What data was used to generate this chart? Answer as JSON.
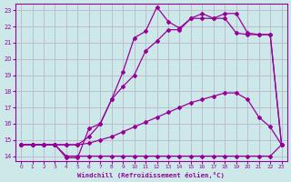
{
  "bg_color": "#cce8e8",
  "grid_color": "#aaaacc",
  "line_color": "#990099",
  "xlabel": "Windchill (Refroidissement éolien,°C)",
  "xlim": [
    -0.5,
    23.5
  ],
  "ylim": [
    13.7,
    23.4
  ],
  "yticks": [
    14,
    15,
    16,
    17,
    18,
    19,
    20,
    21,
    22,
    23
  ],
  "xticks": [
    0,
    1,
    2,
    3,
    4,
    5,
    6,
    7,
    8,
    9,
    10,
    11,
    12,
    13,
    14,
    15,
    16,
    17,
    18,
    19,
    20,
    21,
    22,
    23
  ],
  "line1_x": [
    0,
    1,
    2,
    3,
    4,
    5,
    6,
    7,
    8,
    9,
    10,
    11,
    12,
    13,
    14,
    15,
    16,
    17,
    18,
    19,
    20,
    21,
    22,
    23
  ],
  "line1_y": [
    14.7,
    14.7,
    14.7,
    14.7,
    14.0,
    14.0,
    14.0,
    14.0,
    14.0,
    14.0,
    14.0,
    14.0,
    14.0,
    14.0,
    14.0,
    14.0,
    14.0,
    14.0,
    14.0,
    14.0,
    14.0,
    14.0,
    14.0,
    14.7
  ],
  "line2_x": [
    0,
    1,
    2,
    3,
    4,
    5,
    6,
    7,
    8,
    9,
    10,
    11,
    12,
    13,
    14,
    15,
    16,
    17,
    18,
    19,
    20,
    21,
    22,
    23
  ],
  "line2_y": [
    14.7,
    14.7,
    14.7,
    14.7,
    14.7,
    14.7,
    14.8,
    15.0,
    15.2,
    15.5,
    15.8,
    16.1,
    16.4,
    16.7,
    17.0,
    17.3,
    17.5,
    17.7,
    17.9,
    17.9,
    17.5,
    16.4,
    15.8,
    14.7
  ],
  "line3_x": [
    0,
    1,
    2,
    3,
    4,
    5,
    6,
    7,
    8,
    9,
    10,
    11,
    12,
    13,
    14,
    15,
    16,
    17,
    18,
    19,
    20,
    21,
    22,
    23
  ],
  "line3_y": [
    14.7,
    14.7,
    14.7,
    14.7,
    14.7,
    14.7,
    15.2,
    16.0,
    17.5,
    19.2,
    21.3,
    21.7,
    23.2,
    22.3,
    21.9,
    22.5,
    22.8,
    22.5,
    22.8,
    22.8,
    21.6,
    21.5,
    21.5,
    14.7
  ],
  "line4_x": [
    0,
    1,
    2,
    3,
    4,
    5,
    6,
    7,
    8,
    9,
    10,
    11,
    12,
    13,
    14,
    15,
    16,
    17,
    18,
    19,
    20,
    21,
    22,
    23
  ],
  "line4_y": [
    14.7,
    14.7,
    14.7,
    14.7,
    13.9,
    13.9,
    15.7,
    16.0,
    17.5,
    18.3,
    19.0,
    20.5,
    21.1,
    21.8,
    21.8,
    22.5,
    22.5,
    22.5,
    22.5,
    21.6,
    21.5,
    21.5,
    21.5,
    14.7
  ]
}
